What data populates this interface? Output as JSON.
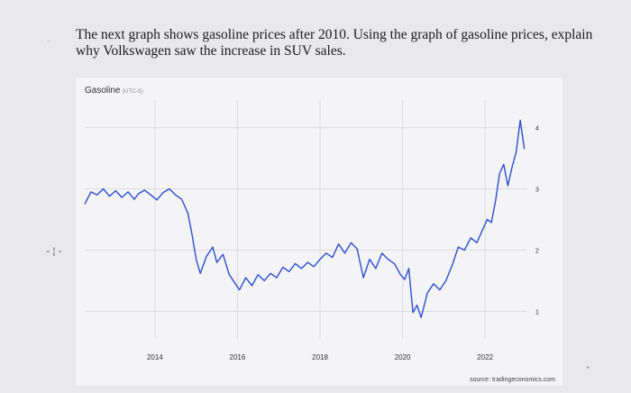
{
  "question": {
    "line1": "The next graph shows gasoline prices after 2010.  Using the graph of gasoline prices, explain",
    "line2": "why Volkswagen saw the increase in SUV sales."
  },
  "chart_data": {
    "type": "line",
    "title": "Gasoline",
    "title_unit": "(UTC-5)",
    "source": "source: tradingeconomics.com",
    "x_ticks": [
      "2014",
      "2016",
      "2018",
      "2020",
      "2022"
    ],
    "y_ticks": [
      "1",
      "2",
      "3",
      "4"
    ],
    "xlim": [
      2012.3,
      2023.0
    ],
    "ylim": [
      0.55,
      4.45
    ],
    "series": [
      {
        "color": "#2b4fcf",
        "x": [
          2012.3,
          2012.45,
          2012.6,
          2012.75,
          2012.9,
          2013.05,
          2013.2,
          2013.35,
          2013.5,
          2013.6,
          2013.75,
          2013.9,
          2014.05,
          2014.2,
          2014.35,
          2014.5,
          2014.65,
          2014.8,
          2014.9,
          2015.0,
          2015.1,
          2015.25,
          2015.4,
          2015.5,
          2015.65,
          2015.8,
          2015.95,
          2016.05,
          2016.2,
          2016.35,
          2016.5,
          2016.65,
          2016.8,
          2016.95,
          2017.1,
          2017.25,
          2017.4,
          2017.55,
          2017.7,
          2017.85,
          2018.0,
          2018.15,
          2018.3,
          2018.45,
          2018.6,
          2018.75,
          2018.9,
          2019.05,
          2019.2,
          2019.35,
          2019.5,
          2019.65,
          2019.8,
          2019.95,
          2020.05,
          2020.15,
          2020.25,
          2020.35,
          2020.45,
          2020.6,
          2020.75,
          2020.9,
          2021.05,
          2021.2,
          2021.35,
          2021.5,
          2021.65,
          2021.8,
          2021.95,
          2022.05,
          2022.15,
          2022.25,
          2022.35,
          2022.45,
          2022.55,
          2022.65,
          2022.75,
          2022.85,
          2022.95
        ],
        "y": [
          2.75,
          2.95,
          2.9,
          3.0,
          2.88,
          2.97,
          2.86,
          2.95,
          2.83,
          2.92,
          2.98,
          2.9,
          2.82,
          2.94,
          3.0,
          2.9,
          2.83,
          2.6,
          2.25,
          1.85,
          1.62,
          1.9,
          2.05,
          1.8,
          1.93,
          1.6,
          1.45,
          1.35,
          1.55,
          1.42,
          1.6,
          1.5,
          1.62,
          1.55,
          1.72,
          1.65,
          1.78,
          1.7,
          1.8,
          1.73,
          1.85,
          1.95,
          1.88,
          2.1,
          1.95,
          2.12,
          2.02,
          1.55,
          1.85,
          1.7,
          1.95,
          1.85,
          1.78,
          1.6,
          1.52,
          1.7,
          0.98,
          1.1,
          0.9,
          1.3,
          1.45,
          1.35,
          1.5,
          1.75,
          2.05,
          2.0,
          2.2,
          2.12,
          2.35,
          2.5,
          2.45,
          2.8,
          3.25,
          3.4,
          3.05,
          3.35,
          3.6,
          4.12,
          3.65
        ]
      }
    ]
  }
}
